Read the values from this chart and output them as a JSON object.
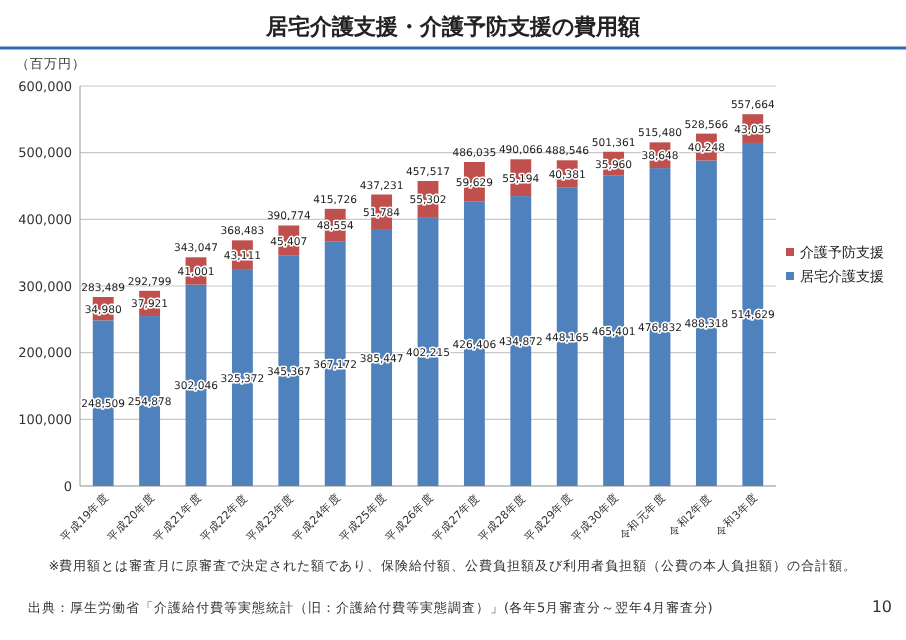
{
  "chart_data": {
    "type": "bar",
    "stacked": true,
    "title": "居宅介護支援・介護予防支援の費用額",
    "ylabel": "（百万円）",
    "categories": [
      "平成19年度",
      "平成20年度",
      "平成21年度",
      "平成22年度",
      "平成23年度",
      "平成24年度",
      "平成25年度",
      "平成26年度",
      "平成27年度",
      "平成28年度",
      "平成29年度",
      "平成30年度",
      "令和元年度",
      "令和2年度",
      "令和3年度"
    ],
    "series": [
      {
        "name": "居宅介護支援",
        "color": "#4f81bd",
        "values": [
          248509,
          254878,
          302046,
          325372,
          345367,
          367172,
          385447,
          402215,
          426406,
          434872,
          448165,
          465401,
          476832,
          488318,
          514629
        ],
        "value_labels": [
          "248,509",
          "254,878",
          "302,046",
          "325,372",
          "345,367",
          "367,172",
          "385,447",
          "402,215",
          "426,406",
          "434,872",
          "448,165",
          "465,401",
          "476,832",
          "488,318",
          "514,629"
        ]
      },
      {
        "name": "介護予防支援",
        "color": "#c0504d",
        "values": [
          34980,
          37921,
          41001,
          43111,
          45407,
          48554,
          51784,
          55302,
          59629,
          55194,
          40381,
          35960,
          38648,
          40248,
          43035
        ],
        "value_labels": [
          "34,980",
          "37,921",
          "41,001",
          "43,111",
          "45,407",
          "48,554",
          "51,784",
          "55,302",
          "59,629",
          "55,194",
          "40,381",
          "35,960",
          "38,648",
          "40,248",
          "43,035"
        ]
      }
    ],
    "totals": [
      "283,489",
      "292,799",
      "343,047",
      "368,483",
      "390,774",
      "415,726",
      "437,231",
      "457,517",
      "486,035",
      "490,066",
      "488,546",
      "501,361",
      "515,480",
      "528,566",
      "557,664"
    ],
    "ylim": [
      0,
      600000
    ],
    "yticks": [
      {
        "value": 0,
        "label": "0"
      },
      {
        "value": 100000,
        "label": "100,000"
      },
      {
        "value": 200000,
        "label": "200,000"
      },
      {
        "value": 300000,
        "label": "300,000"
      },
      {
        "value": 400000,
        "label": "400,000"
      },
      {
        "value": 500000,
        "label": "500,000"
      },
      {
        "value": 600000,
        "label": "600,000"
      }
    ],
    "grid": "y",
    "legend": "right",
    "annotations": [
      "※費用額とは審査月に原審査で決定された額であり、保険給付額、公費負担額及び利用者負担額（公費の本人負担額）の合計額。",
      "出典：厚生労働省「介護給付費等実態統計（旧：介護給付費等実態調査）」(各年5月審査分～翌年4月審査分)",
      "10"
    ]
  }
}
